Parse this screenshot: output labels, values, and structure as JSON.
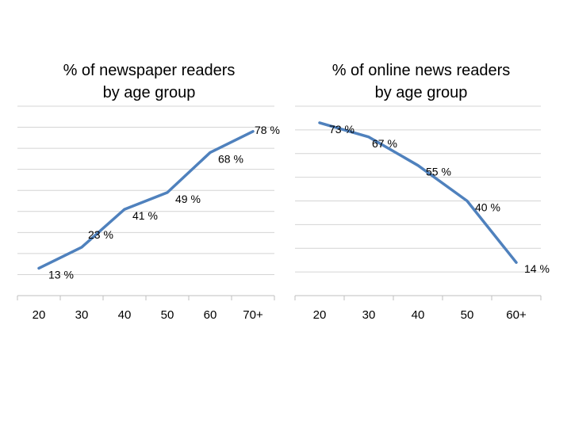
{
  "colors": {
    "line": "#4f81bd",
    "grid": "#d4d4d4",
    "axis": "#bfbfbf",
    "text": "#000000"
  },
  "chart_data": [
    {
      "type": "line",
      "title_lines": [
        "% of newspaper readers",
        "by age group"
      ],
      "categories": [
        "20",
        "30",
        "40",
        "50",
        "60",
        "70+"
      ],
      "series": [
        {
          "values": [
            13,
            23,
            41,
            49,
            68,
            78
          ]
        }
      ],
      "data_labels": [
        "13 %",
        "23 %",
        "41 %",
        "49 %",
        "68 %",
        "78 %"
      ],
      "ylim": [
        0,
        90
      ],
      "grid": true,
      "y_tick_labels_shown": false,
      "legend": "none"
    },
    {
      "type": "line",
      "title_lines": [
        "% of online news readers",
        "by age group"
      ],
      "categories": [
        "20",
        "30",
        "40",
        "50",
        "60+"
      ],
      "series": [
        {
          "values": [
            73,
            67,
            55,
            40,
            14
          ]
        }
      ],
      "data_labels": [
        "73 %",
        "67 %",
        "55 %",
        "40 %",
        "14 %"
      ],
      "ylim": [
        0,
        80
      ],
      "grid": true,
      "y_tick_labels_shown": false,
      "legend": "none"
    }
  ]
}
